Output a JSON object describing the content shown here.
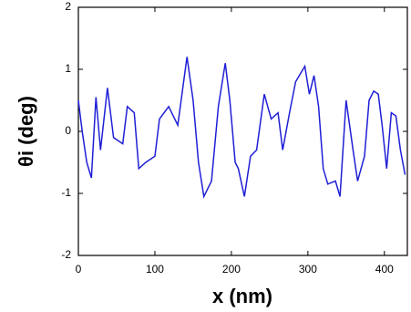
{
  "chart_data": {
    "type": "line",
    "x_label": "x (nm)",
    "y_label": "θi (deg)",
    "xlim": [
      0,
      430
    ],
    "ylim": [
      -2,
      2
    ],
    "xticks": [
      0,
      100,
      200,
      300,
      400
    ],
    "yticks": [
      -2,
      -1,
      0,
      1,
      2
    ],
    "x": [
      0,
      5,
      11,
      17,
      23,
      29,
      38,
      46,
      58,
      64,
      73,
      79,
      88,
      100,
      106,
      118,
      130,
      142,
      150,
      157,
      164,
      174,
      183,
      192,
      198,
      205,
      209,
      217,
      225,
      233,
      243,
      252,
      261,
      267,
      276,
      284,
      296,
      302,
      308,
      314,
      320,
      326,
      336,
      342,
      350,
      359,
      365,
      374,
      380,
      386,
      392,
      397,
      403,
      409,
      415,
      421,
      427
    ],
    "series": [
      {
        "name": "theta",
        "color": "#1f1fd6",
        "values": [
          0.5,
          0,
          -0.5,
          -0.75,
          0.55,
          -0.3,
          0.7,
          -0.1,
          -0.2,
          0.4,
          0.3,
          -0.6,
          -0.5,
          -0.4,
          0.2,
          0.4,
          0.1,
          1.2,
          0.5,
          -0.5,
          -1.05,
          -0.8,
          0.4,
          1.1,
          0.5,
          -0.5,
          -0.6,
          -1.05,
          -0.4,
          -0.3,
          0.6,
          0.2,
          0.3,
          -0.3,
          0.3,
          0.8,
          1.05,
          0.6,
          0.9,
          0.4,
          -0.6,
          -0.85,
          -0.8,
          -1.05,
          0.5,
          -0.3,
          -0.8,
          -0.4,
          0.5,
          0.65,
          0.6,
          0.1,
          -0.6,
          0.3,
          0.25,
          -0.3,
          -0.7
        ]
      }
    ]
  }
}
